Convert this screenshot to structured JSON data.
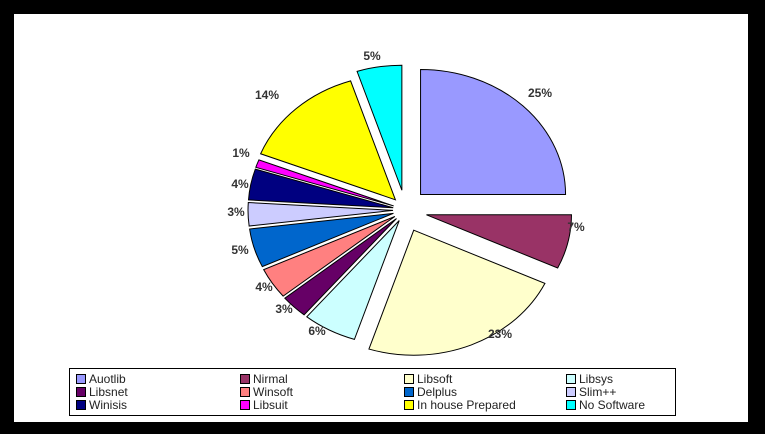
{
  "chart_data": {
    "type": "pie",
    "exploded": true,
    "title": "",
    "legend_position": "bottom",
    "slices": [
      {
        "name": "Auotlib",
        "value": 25,
        "label": "25%",
        "color": "#9999ff"
      },
      {
        "name": "Nirmal",
        "value": 7,
        "label": "7%",
        "color": "#993366"
      },
      {
        "name": "Libsoft",
        "value": 23,
        "label": "23%",
        "color": "#ffffcc"
      },
      {
        "name": "Libsys",
        "value": 6,
        "label": "6%",
        "color": "#ccffff"
      },
      {
        "name": "Libsnet",
        "value": 3,
        "label": "3%",
        "color": "#660066"
      },
      {
        "name": "Winsoft",
        "value": 4,
        "label": "4%",
        "color": "#ff8080"
      },
      {
        "name": "Delplus",
        "value": 5,
        "label": "5%",
        "color": "#0066cc"
      },
      {
        "name": "Slim++",
        "value": 3,
        "label": "3%",
        "color": "#ccccff"
      },
      {
        "name": "Winisis",
        "value": 4,
        "label": "4%",
        "color": "#000080"
      },
      {
        "name": "Libsuit",
        "value": 1,
        "label": "1%",
        "color": "#ff00ff"
      },
      {
        "name": "In house Prepared",
        "value": 14,
        "label": "14%",
        "color": "#ffff00"
      },
      {
        "name": "No Software",
        "value": 5,
        "label": "5%",
        "color": "#00ffff"
      }
    ]
  }
}
